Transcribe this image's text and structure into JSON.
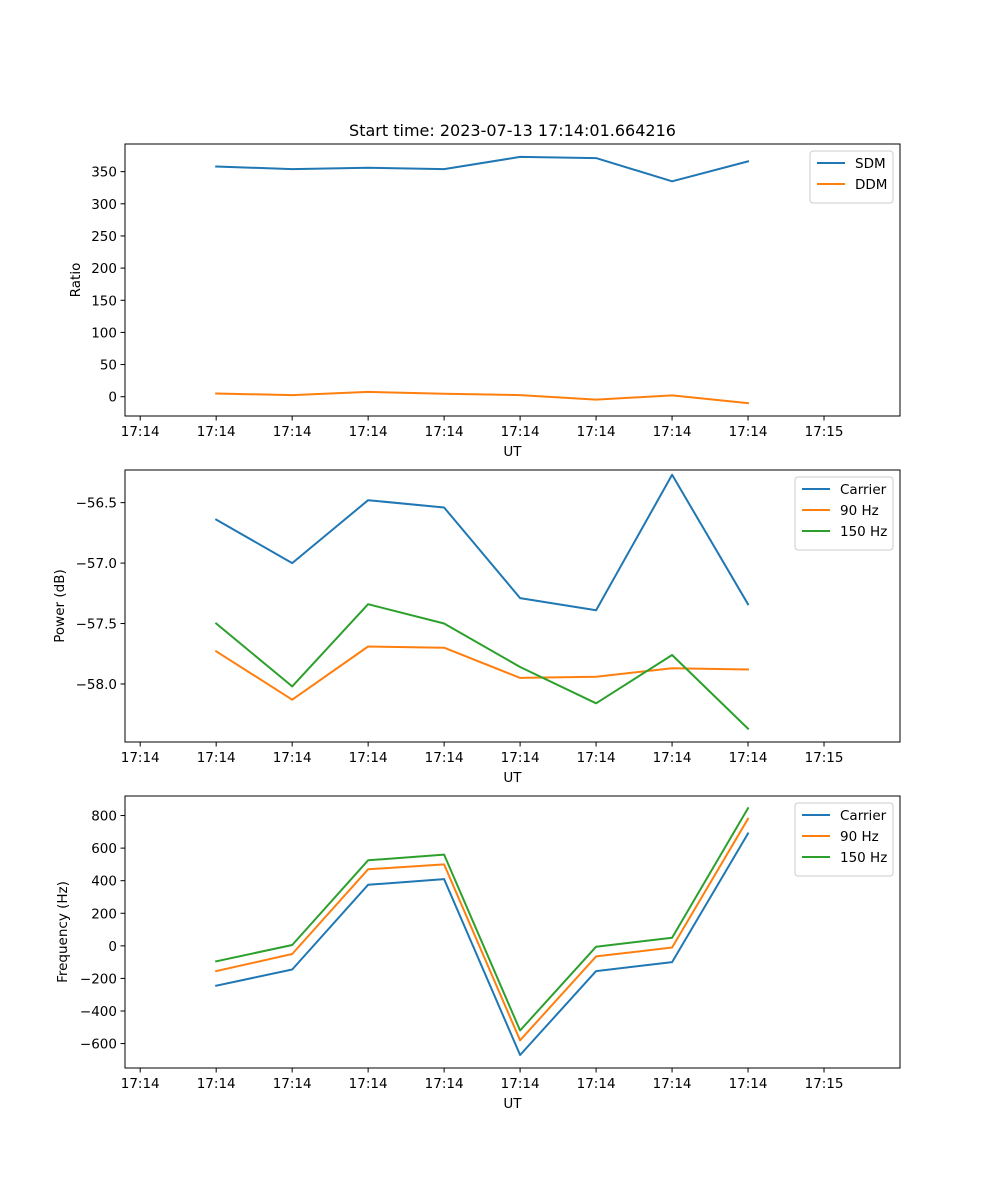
{
  "chart_data": [
    {
      "type": "line",
      "title": "Start time: 2023-07-13 17:14:01.664216",
      "xlabel": "UT",
      "ylabel": "Ratio",
      "xlim": [
        -1.2,
        9.0
      ],
      "x_ticks": [
        -1,
        0,
        1,
        2,
        3,
        4,
        5,
        6,
        7,
        8
      ],
      "x_tick_labels": [
        "17:14",
        "17:14",
        "17:14",
        "17:14",
        "17:14",
        "17:14",
        "17:14",
        "17:14",
        "17:14",
        "17:15"
      ],
      "ylim": [
        -30,
        393
      ],
      "y_ticks": [
        0,
        50,
        100,
        150,
        200,
        250,
        300,
        350
      ],
      "y_tick_labels": [
        "0",
        "50",
        "100",
        "150",
        "200",
        "250",
        "300",
        "350"
      ],
      "legend_position": "top-right",
      "x": [
        0,
        1,
        2,
        3,
        4,
        5,
        6,
        7
      ],
      "series": [
        {
          "name": "SDM",
          "color": "#1f77b4",
          "values": [
            358,
            354,
            356,
            354,
            373,
            371,
            335,
            366
          ]
        },
        {
          "name": "DDM",
          "color": "#ff7f0e",
          "values": [
            5,
            2.5,
            7.5,
            4.5,
            2.5,
            -4.5,
            2,
            -10
          ]
        }
      ]
    },
    {
      "type": "line",
      "title": "",
      "xlabel": "UT",
      "ylabel": "Power (dB)",
      "xlim": [
        -1.2,
        9.0
      ],
      "x_ticks": [
        -1,
        0,
        1,
        2,
        3,
        4,
        5,
        6,
        7,
        8
      ],
      "x_tick_labels": [
        "17:14",
        "17:14",
        "17:14",
        "17:14",
        "17:14",
        "17:14",
        "17:14",
        "17:14",
        "17:14",
        "17:15"
      ],
      "ylim": [
        -58.48,
        -56.23
      ],
      "y_ticks": [
        -58.0,
        -57.5,
        -57.0,
        -56.5
      ],
      "y_tick_labels": [
        "−58.0",
        "−57.5",
        "−57.0",
        "−56.5"
      ],
      "legend_position": "top-right",
      "x": [
        0,
        1,
        2,
        3,
        4,
        5,
        6,
        7
      ],
      "series": [
        {
          "name": "Carrier",
          "color": "#1f77b4",
          "values": [
            -56.64,
            -57.0,
            -56.48,
            -56.54,
            -57.29,
            -57.39,
            -56.27,
            -57.34
          ]
        },
        {
          "name": "90 Hz",
          "color": "#ff7f0e",
          "values": [
            -57.73,
            -58.13,
            -57.69,
            -57.7,
            -57.95,
            -57.94,
            -57.87,
            -57.88
          ]
        },
        {
          "name": "150 Hz",
          "color": "#2ca02c",
          "values": [
            -57.5,
            -58.02,
            -57.34,
            -57.5,
            -57.86,
            -58.16,
            -57.76,
            -58.37
          ]
        }
      ]
    },
    {
      "type": "line",
      "title": "",
      "xlabel": "UT",
      "ylabel": "Frequency (Hz)",
      "xlim": [
        -1.2,
        9.0
      ],
      "x_ticks": [
        -1,
        0,
        1,
        2,
        3,
        4,
        5,
        6,
        7,
        8
      ],
      "x_tick_labels": [
        "17:14",
        "17:14",
        "17:14",
        "17:14",
        "17:14",
        "17:14",
        "17:14",
        "17:14",
        "17:14",
        "17:15"
      ],
      "ylim": [
        -750,
        920
      ],
      "y_ticks": [
        -600,
        -400,
        -200,
        0,
        200,
        400,
        600,
        800
      ],
      "y_tick_labels": [
        "−600",
        "−400",
        "−200",
        "0",
        "200",
        "400",
        "600",
        "800"
      ],
      "legend_position": "top-right",
      "x": [
        0,
        1,
        2,
        3,
        4,
        5,
        6,
        7
      ],
      "series": [
        {
          "name": "Carrier",
          "color": "#1f77b4",
          "values": [
            -245,
            -145,
            375,
            410,
            -670,
            -155,
            -100,
            690
          ]
        },
        {
          "name": "90 Hz",
          "color": "#ff7f0e",
          "values": [
            -155,
            -50,
            470,
            500,
            -580,
            -65,
            -10,
            780
          ]
        },
        {
          "name": "150 Hz",
          "color": "#2ca02c",
          "values": [
            -95,
            5,
            525,
            560,
            -520,
            -5,
            50,
            845
          ]
        }
      ]
    }
  ]
}
